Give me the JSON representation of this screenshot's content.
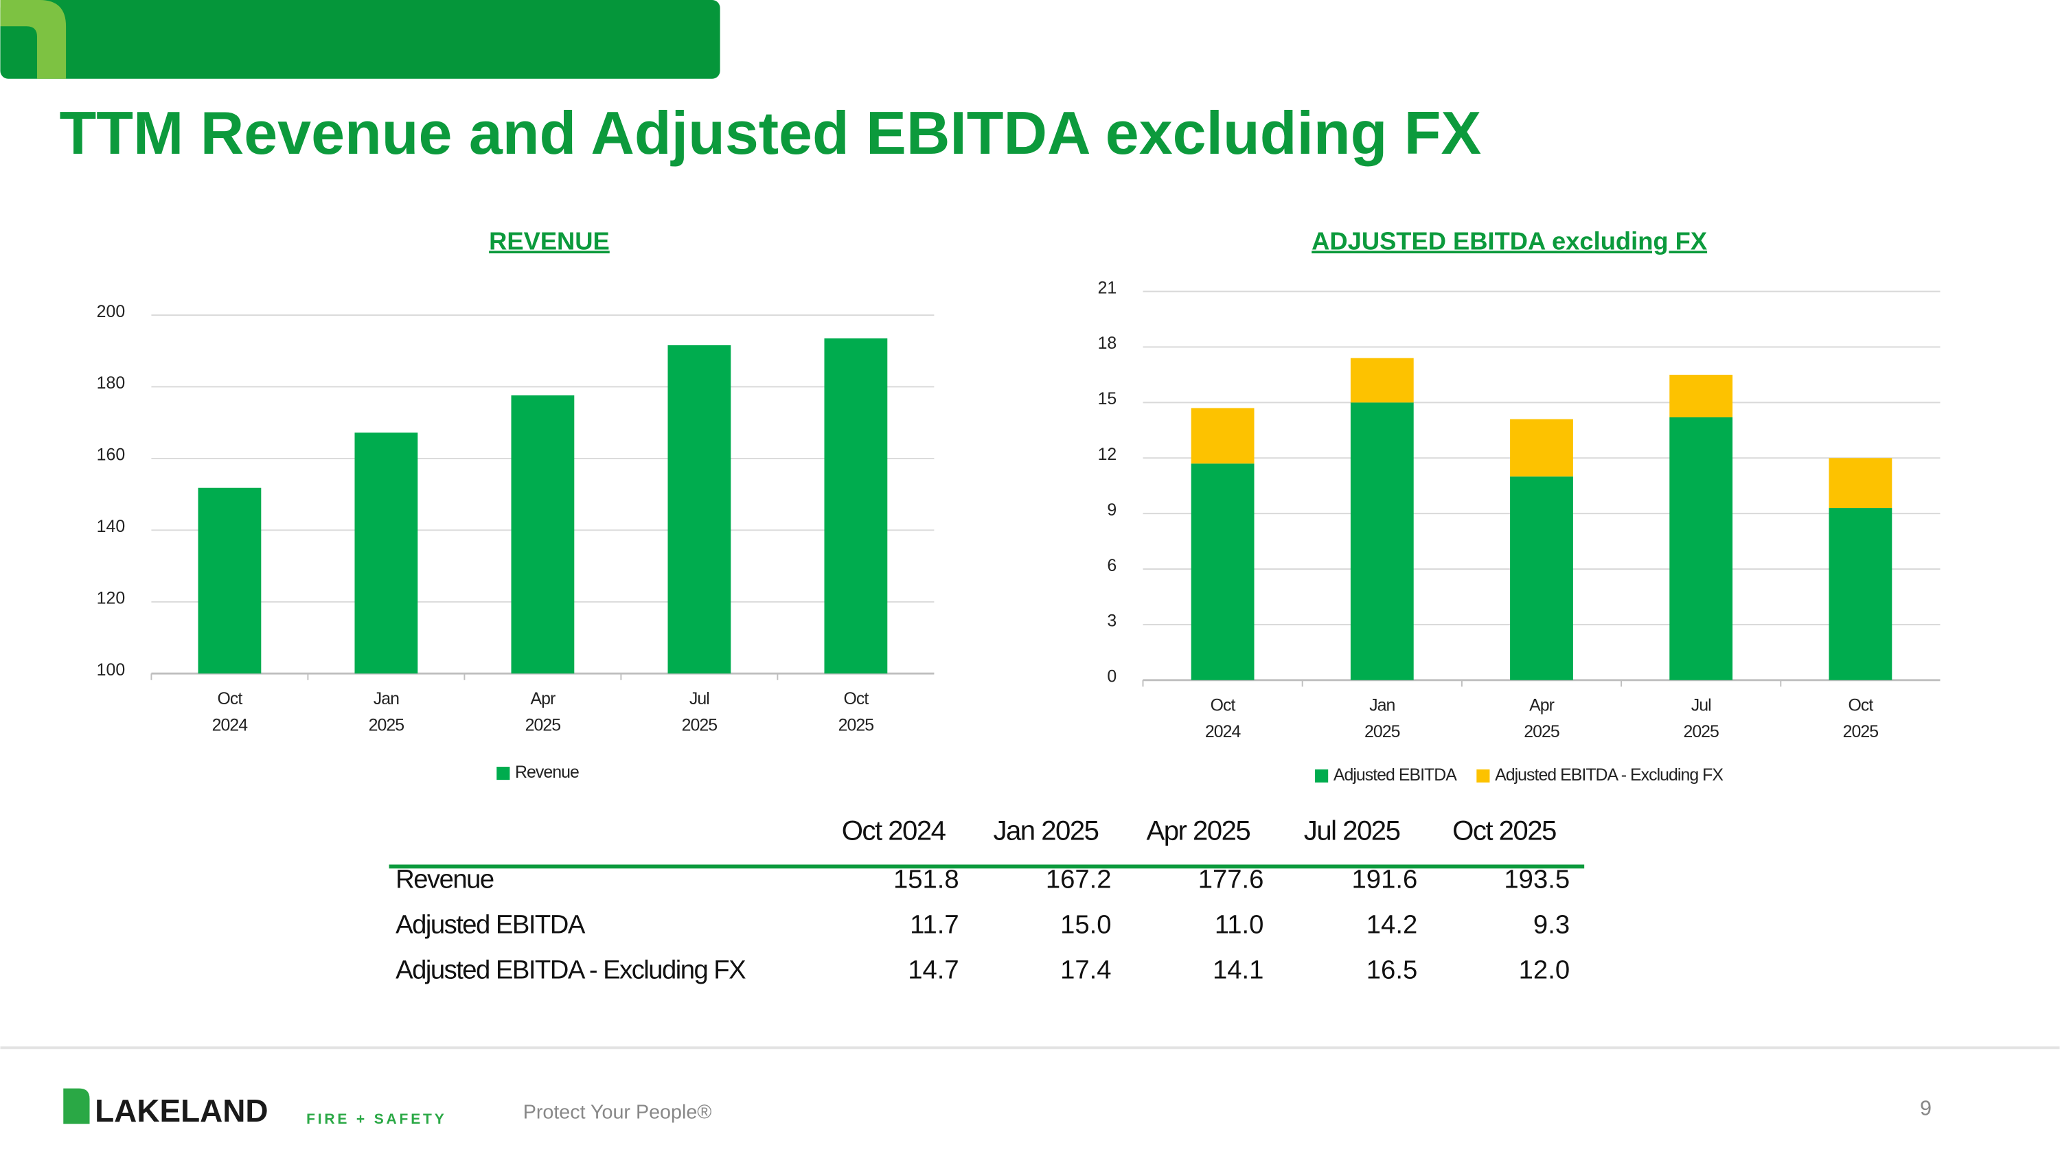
{
  "header": {
    "title": "TTM Revenue and Adjusted EBITDA excluding FX"
  },
  "chart_data": [
    {
      "type": "bar",
      "title": "REVENUE",
      "categories": [
        [
          "Oct",
          "2024"
        ],
        [
          "Jan",
          "2025"
        ],
        [
          "Apr",
          "2025"
        ],
        [
          "Jul",
          "2025"
        ],
        [
          "Oct",
          "2025"
        ]
      ],
      "series": [
        {
          "name": "Revenue",
          "color": "#00ac4e",
          "values": [
            151.8,
            167.2,
            177.6,
            191.6,
            193.5
          ]
        }
      ],
      "ylim": [
        100,
        200
      ],
      "yticks": [
        100,
        120,
        140,
        160,
        180,
        200
      ],
      "grid": true,
      "legend": "bottom"
    },
    {
      "type": "stacked-bar",
      "title": "ADJUSTED EBITDA excluding FX",
      "categories": [
        [
          "Oct",
          "2024"
        ],
        [
          "Jan",
          "2025"
        ],
        [
          "Apr",
          "2025"
        ],
        [
          "Jul",
          "2025"
        ],
        [
          "Oct",
          "2025"
        ]
      ],
      "series": [
        {
          "name": "Adjusted EBITDA",
          "color": "#00ac4e",
          "values": [
            11.7,
            15.0,
            11.0,
            14.2,
            9.3
          ]
        },
        {
          "name": "Adjusted EBITDA - Excluding FX",
          "color": "#fdc200",
          "values": [
            3.0,
            2.4,
            3.1,
            2.3,
            2.7
          ]
        }
      ],
      "ylim": [
        0,
        21
      ],
      "yticks": [
        0,
        3,
        6,
        9,
        12,
        15,
        18,
        21
      ],
      "grid": true,
      "legend": "bottom"
    }
  ],
  "table": {
    "columns": [
      "Oct 2024",
      "Jan 2025",
      "Apr 2025",
      "Jul 2025",
      "Oct 2025"
    ],
    "rows": [
      {
        "label": "Revenue",
        "values": [
          "151.8",
          "167.2",
          "177.6",
          "191.6",
          "193.5"
        ]
      },
      {
        "label": "Adjusted EBITDA",
        "values": [
          "11.7",
          "15.0",
          "11.0",
          "14.2",
          "9.3"
        ]
      },
      {
        "label": "Adjusted EBITDA - Excluding FX",
        "values": [
          "14.7",
          "17.4",
          "14.1",
          "16.5",
          "12.0"
        ]
      }
    ]
  },
  "footer": {
    "brand": "LAKELAND",
    "brand_sub": "FIRE + SAFETY",
    "tagline": "Protect Your People®",
    "page": "9"
  }
}
